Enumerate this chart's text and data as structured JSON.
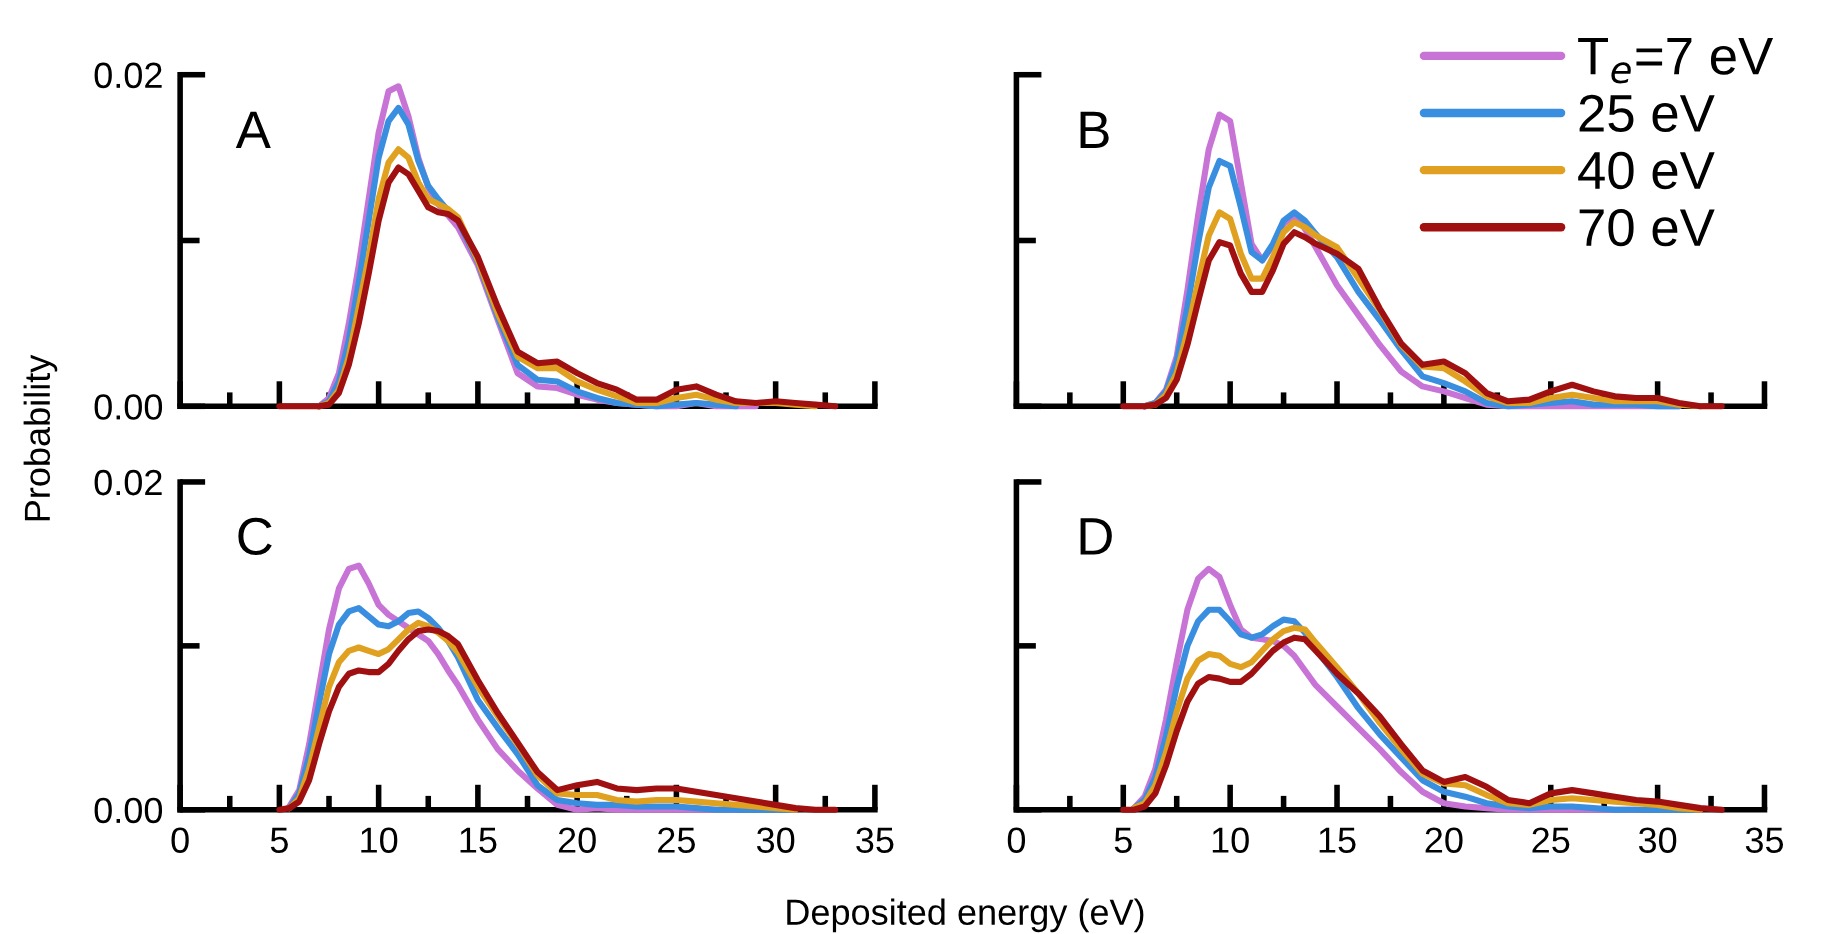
{
  "chart_data": [
    {
      "type": "line",
      "title": "A",
      "ylabel": "Probability",
      "tick_labels": "y",
      "x": [
        5,
        5.5,
        6,
        6.5,
        7,
        7.5,
        8,
        8.5,
        9,
        9.5,
        10,
        10.5,
        11,
        11.5,
        12,
        12.5,
        13,
        13.5,
        14,
        15,
        16,
        17,
        18,
        19,
        20,
        21,
        22,
        23,
        24,
        25,
        26,
        27,
        28,
        29,
        30,
        31,
        32,
        33
      ],
      "xlim": [
        0,
        35
      ],
      "ylim": [
        0,
        0.02
      ],
      "xticks": [
        0,
        {
          "value": 2.5,
          "label": null
        },
        5,
        {
          "value": 7.5,
          "label": null
        },
        10,
        {
          "value": 12.5,
          "label": null
        },
        15,
        {
          "value": 17.5,
          "label": null
        },
        20,
        {
          "value": 22.5,
          "label": null
        },
        25,
        {
          "value": 27.5,
          "label": null
        },
        30,
        {
          "value": 32.5,
          "label": null
        },
        35
      ],
      "yticks": [
        {
          "value": 0,
          "label": "0.00"
        },
        {
          "value": 0.01,
          "label": null
        },
        {
          "value": 0.02,
          "label": "0.02"
        }
      ],
      "series": [
        {
          "color": "#c774d6",
          "values": [
            null,
            null,
            null,
            null,
            0,
            0.0005,
            0.002,
            0.005,
            0.0085,
            0.0125,
            0.0165,
            0.019,
            0.0193,
            0.0175,
            0.015,
            0.0132,
            0.0122,
            0.0115,
            0.0108,
            0.0085,
            0.0052,
            0.002,
            0.0012,
            0.0011,
            0.0007,
            0.0004,
            0.0002,
            0.0001,
            0,
            0,
            0.0002,
            0,
            0,
            0,
            null,
            null,
            null,
            null
          ]
        },
        {
          "color": "#3a8ee0",
          "values": [
            null,
            null,
            null,
            null,
            0,
            0.0003,
            0.0015,
            0.004,
            0.0075,
            0.0112,
            0.015,
            0.0172,
            0.018,
            0.017,
            0.0148,
            0.0133,
            0.0125,
            0.0118,
            0.0112,
            0.0087,
            0.0054,
            0.0025,
            0.0016,
            0.0015,
            0.0009,
            0.0005,
            0.0002,
            0.0001,
            0,
            0.0001,
            0.0002,
            0.0001,
            0,
            null,
            null,
            null,
            null,
            null
          ]
        },
        {
          "color": "#e0a020",
          "values": [
            null,
            null,
            null,
            null,
            0,
            0.0002,
            0.001,
            0.003,
            0.006,
            0.009,
            0.0125,
            0.0147,
            0.0155,
            0.015,
            0.0135,
            0.0125,
            0.0122,
            0.0119,
            0.0114,
            0.0088,
            0.0056,
            0.003,
            0.0023,
            0.0023,
            0.0015,
            0.001,
            0.0006,
            0.0002,
            0.0002,
            0.0005,
            0.0007,
            0.0004,
            0.0002,
            0.0002,
            0.0002,
            0.0001,
            0,
            null
          ]
        },
        {
          "color": "#a01010",
          "values": [
            0,
            0,
            0,
            0,
            0,
            0.0001,
            0.0008,
            0.0025,
            0.005,
            0.008,
            0.0112,
            0.0135,
            0.0144,
            0.014,
            0.013,
            0.012,
            0.0117,
            0.0116,
            0.0112,
            0.009,
            0.006,
            0.0033,
            0.0026,
            0.0027,
            0.002,
            0.0014,
            0.001,
            0.0004,
            0.0004,
            0.001,
            0.0012,
            0.0007,
            0.0003,
            0.0002,
            0.0003,
            0.0002,
            0.0001,
            0
          ]
        }
      ]
    },
    {
      "type": "line",
      "title": "B",
      "tick_labels": false,
      "legend": "top right",
      "x": [
        5,
        5.5,
        6,
        6.5,
        7,
        7.5,
        8,
        8.5,
        9,
        9.5,
        10,
        10.5,
        11,
        11.5,
        12,
        12.5,
        13,
        13.5,
        14,
        15,
        16,
        17,
        18,
        19,
        20,
        21,
        22,
        23,
        24,
        25,
        26,
        27,
        28,
        29,
        30,
        31,
        32,
        33
      ],
      "xlim": [
        0,
        35
      ],
      "ylim": [
        0,
        0.02
      ],
      "xticks": [
        0,
        {
          "value": 2.5,
          "label": null
        },
        5,
        {
          "value": 7.5,
          "label": null
        },
        10,
        {
          "value": 12.5,
          "label": null
        },
        15,
        {
          "value": 17.5,
          "label": null
        },
        20,
        {
          "value": 22.5,
          "label": null
        },
        25,
        {
          "value": 27.5,
          "label": null
        },
        30,
        {
          "value": 32.5,
          "label": null
        },
        35
      ],
      "yticks": [
        {
          "value": 0,
          "label": null
        },
        {
          "value": 0.01,
          "label": null
        },
        {
          "value": 0.02,
          "label": null
        }
      ],
      "series": [
        {
          "name": "T$_{e}$=7 eV",
          "color": "#c774d6",
          "values": [
            null,
            null,
            0,
            0.0002,
            0.001,
            0.003,
            0.007,
            0.0115,
            0.0155,
            0.0176,
            0.0172,
            0.0135,
            0.0098,
            0.0088,
            0.0097,
            0.011,
            0.0115,
            0.0107,
            0.0096,
            0.0073,
            0.0055,
            0.0037,
            0.0021,
            0.0012,
            0.0009,
            0.0005,
            0.0001,
            0,
            0,
            0,
            0,
            0,
            0,
            0,
            0,
            0,
            null,
            null
          ]
        },
        {
          "name": "25 eV",
          "color": "#3a8ee0",
          "values": [
            null,
            null,
            0,
            0.0002,
            0.0009,
            0.0027,
            0.006,
            0.0098,
            0.0132,
            0.0148,
            0.0145,
            0.012,
            0.0093,
            0.0088,
            0.0098,
            0.0112,
            0.0117,
            0.0112,
            0.0104,
            0.009,
            0.0069,
            0.0052,
            0.0034,
            0.0018,
            0.0014,
            0.0009,
            0.0002,
            0,
            0.0001,
            0.0002,
            0.0003,
            0.0001,
            0.0001,
            0.0001,
            0,
            0,
            null,
            null
          ]
        },
        {
          "name": "40 eV",
          "color": "#e0a020",
          "values": [
            null,
            null,
            0,
            0.0001,
            0.0007,
            0.002,
            0.0045,
            0.0075,
            0.0103,
            0.0117,
            0.0113,
            0.0092,
            0.0077,
            0.0077,
            0.009,
            0.0105,
            0.0111,
            0.0108,
            0.0103,
            0.0096,
            0.0077,
            0.0058,
            0.0037,
            0.0024,
            0.0023,
            0.0015,
            0.0006,
            0.0002,
            0.0002,
            0.0005,
            0.0007,
            0.0005,
            0.0003,
            0.0003,
            0.0003,
            0.0001,
            0,
            null
          ]
        },
        {
          "name": "70 eV",
          "color": "#a01010",
          "values": [
            0,
            0,
            0,
            0.0001,
            0.0005,
            0.0016,
            0.0037,
            0.0063,
            0.0088,
            0.0099,
            0.0097,
            0.008,
            0.0069,
            0.0069,
            0.0082,
            0.0098,
            0.0105,
            0.0102,
            0.0098,
            0.0092,
            0.0083,
            0.0059,
            0.0038,
            0.0025,
            0.0027,
            0.002,
            0.0008,
            0.0003,
            0.0004,
            0.0009,
            0.0013,
            0.0009,
            0.0006,
            0.0005,
            0.0005,
            0.0002,
            0,
            0
          ]
        }
      ]
    },
    {
      "type": "line",
      "title": "C",
      "xlabel": "Deposited energy (eV)",
      "x": [
        5,
        5.5,
        6,
        6.5,
        7,
        7.5,
        8,
        8.5,
        9,
        9.5,
        10,
        10.5,
        11,
        11.5,
        12,
        12.5,
        13,
        13.5,
        14,
        15,
        16,
        17,
        18,
        19,
        20,
        21,
        22,
        23,
        24,
        25,
        26,
        27,
        28,
        29,
        30,
        31,
        32,
        33
      ],
      "xlim": [
        0,
        35
      ],
      "ylim": [
        0,
        0.02
      ],
      "xticks": [
        0,
        {
          "value": 2.5,
          "label": null
        },
        5,
        {
          "value": 7.5,
          "label": null
        },
        10,
        {
          "value": 12.5,
          "label": null
        },
        15,
        {
          "value": 17.5,
          "label": null
        },
        20,
        {
          "value": 22.5,
          "label": null
        },
        25,
        {
          "value": 27.5,
          "label": null
        },
        30,
        {
          "value": 32.5,
          "label": null
        },
        35
      ],
      "yticks": [
        {
          "value": 0,
          "label": "0.00"
        },
        {
          "value": 0.01,
          "label": null
        },
        {
          "value": 0.02,
          "label": "0.02"
        }
      ],
      "series": [
        {
          "color": "#c774d6",
          "values": [
            null,
            0.0002,
            0.0012,
            0.004,
            0.0075,
            0.011,
            0.0135,
            0.0147,
            0.0149,
            0.0138,
            0.0125,
            0.0119,
            0.0115,
            0.0111,
            0.0107,
            0.0103,
            0.0095,
            0.0085,
            0.0076,
            0.0055,
            0.0037,
            0.0024,
            0.0013,
            0.0003,
            0,
            0.0001,
            0,
            0,
            0,
            0,
            0,
            0,
            0,
            null,
            null,
            null,
            null,
            null
          ]
        },
        {
          "color": "#3a8ee0",
          "values": [
            null,
            0.0001,
            0.001,
            0.0033,
            0.0065,
            0.0095,
            0.0113,
            0.0121,
            0.0123,
            0.0118,
            0.0113,
            0.0112,
            0.0115,
            0.012,
            0.0121,
            0.0117,
            0.0111,
            0.0103,
            0.0093,
            0.0067,
            0.005,
            0.0034,
            0.0015,
            0.0006,
            0.0004,
            0.0003,
            0.0003,
            0.0002,
            0.0002,
            0.0002,
            0.0001,
            0,
            0,
            0,
            0,
            0,
            null,
            null
          ]
        },
        {
          "color": "#e0a020",
          "values": [
            null,
            0.0001,
            0.0007,
            0.0025,
            0.005,
            0.0075,
            0.009,
            0.0097,
            0.0099,
            0.0097,
            0.0095,
            0.0098,
            0.0104,
            0.011,
            0.0114,
            0.0112,
            0.0108,
            0.0103,
            0.0096,
            0.0075,
            0.0057,
            0.004,
            0.0021,
            0.001,
            0.0009,
            0.0009,
            0.0006,
            0.0005,
            0.0006,
            0.0006,
            0.0005,
            0.0004,
            0.0003,
            0.0002,
            0.0001,
            0,
            null,
            null
          ]
        },
        {
          "color": "#a01010",
          "values": [
            0,
            0.0001,
            0.0005,
            0.0018,
            0.004,
            0.006,
            0.0075,
            0.0083,
            0.0085,
            0.0084,
            0.0084,
            0.0089,
            0.0097,
            0.0104,
            0.0109,
            0.011,
            0.0109,
            0.0106,
            0.0101,
            0.0079,
            0.0059,
            0.0041,
            0.0023,
            0.0012,
            0.0015,
            0.0017,
            0.0013,
            0.0012,
            0.0013,
            0.0013,
            0.0011,
            0.0009,
            0.0007,
            0.0005,
            0.0003,
            0.0001,
            0,
            0
          ]
        }
      ]
    },
    {
      "type": "line",
      "title": "D",
      "tick_labels": "x",
      "x": [
        5,
        5.5,
        6,
        6.5,
        7,
        7.5,
        8,
        8.5,
        9,
        9.5,
        10,
        10.5,
        11,
        11.5,
        12,
        12.5,
        13,
        13.5,
        14,
        15,
        16,
        17,
        18,
        19,
        20,
        21,
        22,
        23,
        24,
        25,
        26,
        27,
        28,
        29,
        30,
        31,
        32,
        33
      ],
      "xlim": [
        0,
        35
      ],
      "ylim": [
        0,
        0.02
      ],
      "xticks": [
        0,
        {
          "value": 2.5,
          "label": null
        },
        5,
        {
          "value": 7.5,
          "label": null
        },
        10,
        {
          "value": 12.5,
          "label": null
        },
        15,
        {
          "value": 17.5,
          "label": null
        },
        20,
        {
          "value": 22.5,
          "label": null
        },
        25,
        {
          "value": 27.5,
          "label": null
        },
        30,
        {
          "value": 32.5,
          "label": null
        },
        35
      ],
      "yticks": [
        {
          "value": 0,
          "label": null
        },
        {
          "value": 0.01,
          "label": null
        },
        {
          "value": 0.02,
          "label": null
        }
      ],
      "series": [
        {
          "color": "#c774d6",
          "values": [
            null,
            0.0001,
            0.0008,
            0.0025,
            0.0055,
            0.009,
            0.0122,
            0.0141,
            0.0147,
            0.0142,
            0.0125,
            0.011,
            0.0105,
            0.0104,
            0.0103,
            0.01,
            0.0094,
            0.0085,
            0.0076,
            0.0063,
            0.005,
            0.0037,
            0.0023,
            0.0011,
            0.0004,
            0.0002,
            0.0001,
            0,
            0,
            0,
            0,
            0,
            0,
            0,
            null,
            null,
            null,
            null
          ]
        },
        {
          "color": "#3a8ee0",
          "values": [
            null,
            0.0001,
            0.0006,
            0.002,
            0.0045,
            0.0075,
            0.01,
            0.0115,
            0.0122,
            0.0122,
            0.0115,
            0.0107,
            0.0105,
            0.0107,
            0.0112,
            0.0116,
            0.0115,
            0.0108,
            0.0098,
            0.0081,
            0.0062,
            0.0046,
            0.0032,
            0.0018,
            0.0011,
            0.0008,
            0.0004,
            0.0002,
            0.0001,
            0.0002,
            0.0002,
            0.0001,
            0,
            0,
            0,
            0,
            0,
            null
          ]
        },
        {
          "color": "#e0a020",
          "values": [
            null,
            0.0001,
            0.0004,
            0.0015,
            0.0035,
            0.006,
            0.008,
            0.0091,
            0.0095,
            0.0094,
            0.0089,
            0.0087,
            0.009,
            0.0097,
            0.0104,
            0.0109,
            0.0111,
            0.011,
            0.0102,
            0.0087,
            0.0071,
            0.0053,
            0.0037,
            0.0022,
            0.0016,
            0.0015,
            0.0009,
            0.0004,
            0.0003,
            0.0006,
            0.0007,
            0.0006,
            0.0005,
            0.0004,
            0.0003,
            0.0001,
            0,
            null
          ]
        },
        {
          "color": "#a01010",
          "values": [
            0,
            0,
            0.0002,
            0.001,
            0.0027,
            0.0048,
            0.0066,
            0.0077,
            0.0081,
            0.008,
            0.0078,
            0.0078,
            0.0083,
            0.009,
            0.0097,
            0.0102,
            0.0105,
            0.0104,
            0.0097,
            0.0083,
            0.0071,
            0.0057,
            0.004,
            0.0024,
            0.0017,
            0.002,
            0.0014,
            0.0006,
            0.0004,
            0.001,
            0.0012,
            0.001,
            0.0008,
            0.0006,
            0.0005,
            0.0003,
            0.0001,
            0
          ]
        }
      ]
    }
  ]
}
